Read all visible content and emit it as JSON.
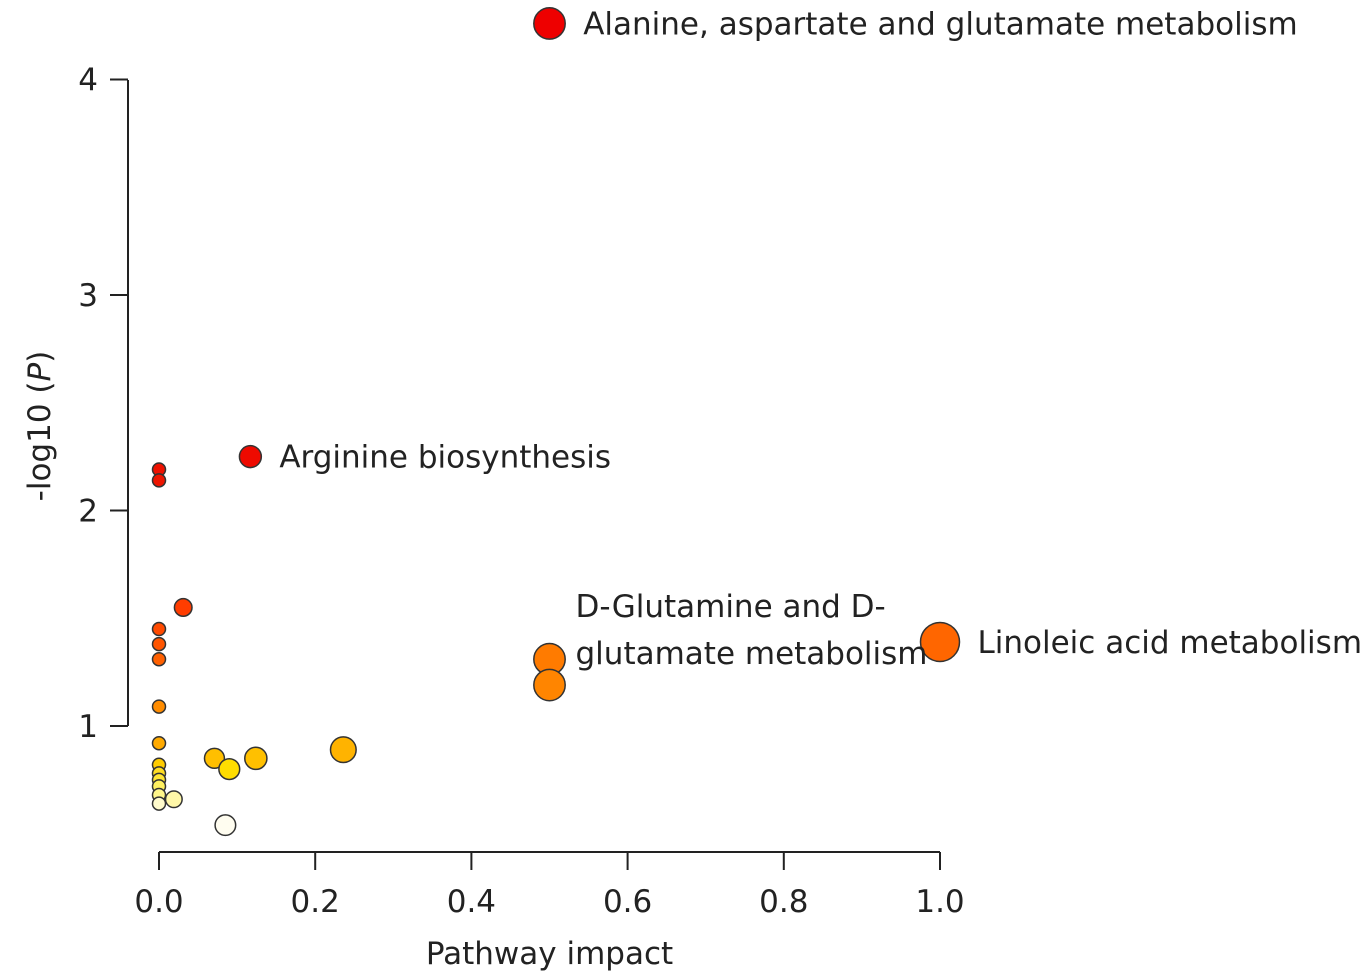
{
  "chart_data": {
    "type": "scatter",
    "xlabel": "Pathway impact",
    "ylabel": "-log10 (P)",
    "ylabel_main": "-log10 (",
    "ylabel_italic": "P",
    "ylabel_close": ")",
    "xlim": [
      0.0,
      1.0
    ],
    "ylim": [
      0.45,
      4.0
    ],
    "x_ticks": [
      "0.0",
      "0.2",
      "0.4",
      "0.6",
      "0.8",
      "1.0"
    ],
    "y_ticks": [
      "1",
      "2",
      "3",
      "4"
    ],
    "grid": false,
    "legend": "none",
    "size_encoding": "pathway impact",
    "color_encoding": "-log10 (P) (yellow = low, red = high)",
    "points": [
      {
        "x": 0.5,
        "y": 4.26,
        "label": "Alanine, aspartate and glutamate metabolism",
        "color": "#ee0000"
      },
      {
        "x": 0.117,
        "y": 2.25,
        "label": "Arginine biosynthesis",
        "color": "#ee0a00"
      },
      {
        "x": 0.5,
        "y": 1.31,
        "label": "D-Glutamine and D-",
        "label2": "glutamate metabolism",
        "color": "#ff7b00"
      },
      {
        "x": 0.5,
        "y": 1.19,
        "label": "",
        "color": "#ff8500"
      },
      {
        "x": 1.0,
        "y": 1.39,
        "label": "Linoleic acid metabolism",
        "color": "#ff6600"
      },
      {
        "x": 0.0,
        "y": 2.19,
        "label": "",
        "color": "#ee1100"
      },
      {
        "x": 0.0,
        "y": 2.14,
        "label": "",
        "color": "#ee1500"
      },
      {
        "x": 0.031,
        "y": 1.55,
        "label": "",
        "color": "#ff3d00"
      },
      {
        "x": 0.0,
        "y": 1.45,
        "label": "",
        "color": "#ff4a00"
      },
      {
        "x": 0.0,
        "y": 1.38,
        "label": "",
        "color": "#ff5500"
      },
      {
        "x": 0.0,
        "y": 1.31,
        "label": "",
        "color": "#ff6000"
      },
      {
        "x": 0.0,
        "y": 1.09,
        "label": "",
        "color": "#ff8c00"
      },
      {
        "x": 0.0,
        "y": 0.92,
        "label": "",
        "color": "#ffaa00"
      },
      {
        "x": 0.0,
        "y": 0.82,
        "label": "",
        "color": "#ffcc00"
      },
      {
        "x": 0.0,
        "y": 0.78,
        "label": "",
        "color": "#ffdd22"
      },
      {
        "x": 0.0,
        "y": 0.75,
        "label": "",
        "color": "#ffe633"
      },
      {
        "x": 0.0,
        "y": 0.72,
        "label": "",
        "color": "#fff060"
      },
      {
        "x": 0.0,
        "y": 0.68,
        "label": "",
        "color": "#fff68a"
      },
      {
        "x": 0.0,
        "y": 0.64,
        "label": "",
        "color": "#fffbcc"
      },
      {
        "x": 0.019,
        "y": 0.66,
        "label": "",
        "color": "#fff7a8"
      },
      {
        "x": 0.071,
        "y": 0.85,
        "label": "",
        "color": "#ffbf00"
      },
      {
        "x": 0.09,
        "y": 0.8,
        "label": "",
        "color": "#ffdd00"
      },
      {
        "x": 0.124,
        "y": 0.85,
        "label": "",
        "color": "#ffc000"
      },
      {
        "x": 0.236,
        "y": 0.89,
        "label": "",
        "color": "#ffb300"
      },
      {
        "x": 0.085,
        "y": 0.54,
        "label": "",
        "color": "#fffdf0"
      }
    ]
  }
}
